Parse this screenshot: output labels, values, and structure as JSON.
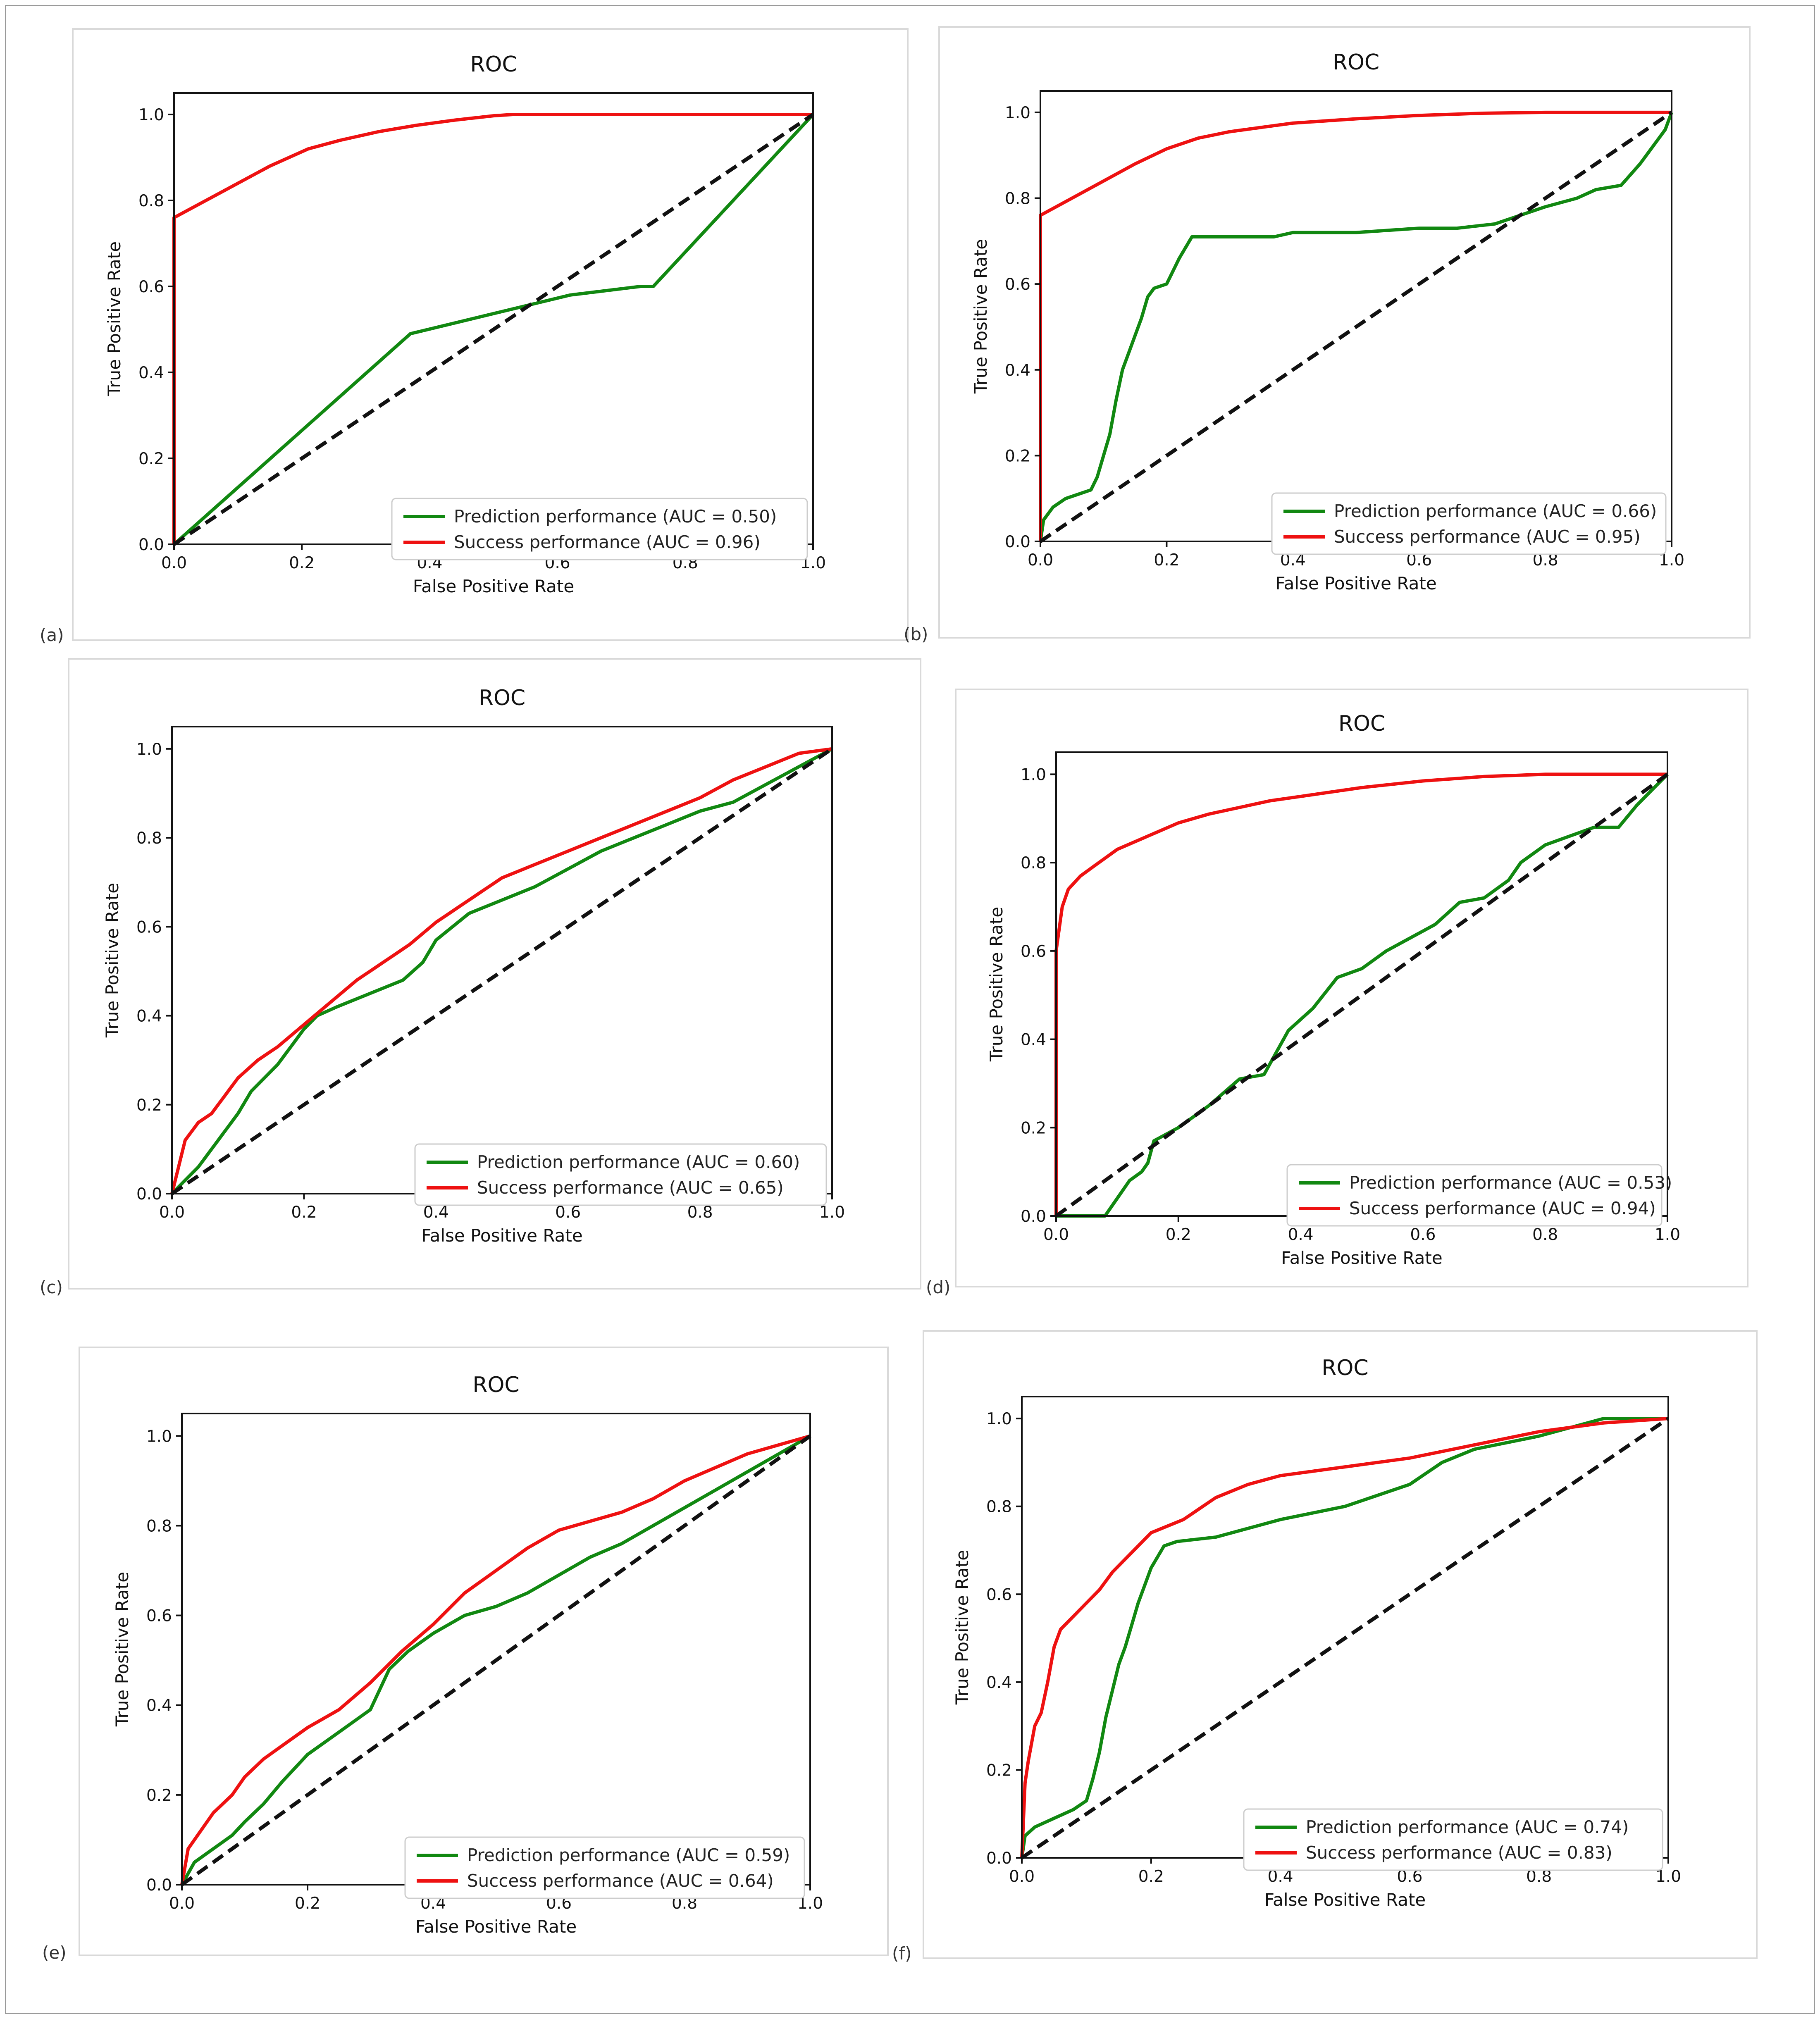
{
  "colors": {
    "prediction": "#118811",
    "success": "#ee1111",
    "reference": "#111111"
  },
  "panel_labels": [
    "(a)",
    "(b)",
    "(c)",
    "(d)",
    "(e)",
    "(f)"
  ],
  "chart_data": [
    {
      "id": "a",
      "type": "line",
      "title": "ROC",
      "xlabel": "False Positive Rate",
      "ylabel": "True Positive Rate",
      "xlim": [
        0,
        1
      ],
      "ylim": [
        0,
        1.05
      ],
      "xticks": [
        "0.0",
        "0.2",
        "0.4",
        "0.6",
        "0.8",
        "1.0"
      ],
      "yticks": [
        "0.0",
        "0.2",
        "0.4",
        "0.6",
        "0.8",
        "1.0"
      ],
      "legend": "lower-right",
      "series": [
        {
          "name": "Prediction performance (AUC = 0.50)",
          "color": "prediction",
          "x": [
            0,
            0.37,
            0.62,
            0.73,
            0.75,
            1.0
          ],
          "y": [
            0,
            0.49,
            0.58,
            0.6,
            0.6,
            1.0
          ]
        },
        {
          "name": "Success performance (AUC = 0.96)",
          "color": "success",
          "x": [
            0,
            0,
            0.05,
            0.1,
            0.15,
            0.21,
            0.26,
            0.32,
            0.38,
            0.44,
            0.5,
            0.53,
            0.6,
            0.7,
            0.8,
            0.9,
            1.0
          ],
          "y": [
            0,
            0.76,
            0.8,
            0.84,
            0.88,
            0.92,
            0.94,
            0.96,
            0.975,
            0.987,
            0.997,
            1.0,
            1.0,
            1.0,
            1.0,
            1.0,
            1.0
          ]
        },
        {
          "name": "reference",
          "color": "reference",
          "dashed": true,
          "legend": false,
          "x": [
            0,
            1
          ],
          "y": [
            0,
            1
          ]
        }
      ]
    },
    {
      "id": "b",
      "type": "line",
      "title": "ROC",
      "xlabel": "False Positive Rate",
      "ylabel": "True Positive Rate",
      "xlim": [
        0,
        1
      ],
      "ylim": [
        0,
        1.05
      ],
      "xticks": [
        "0.0",
        "0.2",
        "0.4",
        "0.6",
        "0.8",
        "1.0"
      ],
      "yticks": [
        "0.0",
        "0.2",
        "0.4",
        "0.6",
        "0.8",
        "1.0"
      ],
      "legend": "lower-right",
      "series": [
        {
          "name": "Prediction performance (AUC = 0.66)",
          "color": "prediction",
          "x": [
            0,
            0.005,
            0.02,
            0.04,
            0.06,
            0.08,
            0.09,
            0.1,
            0.11,
            0.12,
            0.13,
            0.14,
            0.15,
            0.16,
            0.17,
            0.18,
            0.2,
            0.22,
            0.24,
            0.3,
            0.37,
            0.4,
            0.5,
            0.6,
            0.66,
            0.72,
            0.76,
            0.8,
            0.85,
            0.88,
            0.92,
            0.95,
            0.97,
            0.99,
            1.0
          ],
          "y": [
            0,
            0.05,
            0.08,
            0.1,
            0.11,
            0.12,
            0.15,
            0.2,
            0.25,
            0.33,
            0.4,
            0.44,
            0.48,
            0.52,
            0.57,
            0.59,
            0.6,
            0.66,
            0.71,
            0.71,
            0.71,
            0.72,
            0.72,
            0.73,
            0.73,
            0.74,
            0.76,
            0.78,
            0.8,
            0.82,
            0.83,
            0.88,
            0.92,
            0.96,
            1.0
          ]
        },
        {
          "name": "Success performance (AUC = 0.95)",
          "color": "success",
          "x": [
            0,
            0,
            0.05,
            0.1,
            0.15,
            0.2,
            0.25,
            0.3,
            0.35,
            0.4,
            0.5,
            0.6,
            0.7,
            0.8,
            0.9,
            1.0
          ],
          "y": [
            0,
            0.76,
            0.8,
            0.84,
            0.88,
            0.915,
            0.94,
            0.955,
            0.965,
            0.975,
            0.985,
            0.993,
            0.998,
            1.0,
            1.0,
            1.0
          ]
        },
        {
          "name": "reference",
          "color": "reference",
          "dashed": true,
          "legend": false,
          "x": [
            0,
            1
          ],
          "y": [
            0,
            1
          ]
        }
      ]
    },
    {
      "id": "c",
      "type": "line",
      "title": "ROC",
      "xlabel": "False Positive Rate",
      "ylabel": "True Positive Rate",
      "xlim": [
        0,
        1
      ],
      "ylim": [
        0,
        1.05
      ],
      "xticks": [
        "0.0",
        "0.2",
        "0.4",
        "0.6",
        "0.8",
        "1.0"
      ],
      "yticks": [
        "0.0",
        "0.2",
        "0.4",
        "0.6",
        "0.8",
        "1.0"
      ],
      "legend": "lower-right",
      "series": [
        {
          "name": "Prediction performance (AUC = 0.60)",
          "color": "prediction",
          "x": [
            0,
            0.02,
            0.04,
            0.06,
            0.08,
            0.1,
            0.12,
            0.14,
            0.16,
            0.18,
            0.2,
            0.22,
            0.25,
            0.3,
            0.35,
            0.38,
            0.4,
            0.45,
            0.5,
            0.55,
            0.6,
            0.65,
            0.7,
            0.75,
            0.8,
            0.85,
            0.9,
            0.95,
            1.0
          ],
          "y": [
            0,
            0.03,
            0.06,
            0.1,
            0.14,
            0.18,
            0.23,
            0.26,
            0.29,
            0.33,
            0.37,
            0.4,
            0.42,
            0.45,
            0.48,
            0.52,
            0.57,
            0.63,
            0.66,
            0.69,
            0.73,
            0.77,
            0.8,
            0.83,
            0.86,
            0.88,
            0.92,
            0.96,
            1.0
          ]
        },
        {
          "name": "Success performance (AUC = 0.65)",
          "color": "success",
          "x": [
            0,
            0.01,
            0.02,
            0.04,
            0.06,
            0.08,
            0.1,
            0.13,
            0.16,
            0.2,
            0.24,
            0.28,
            0.32,
            0.36,
            0.4,
            0.45,
            0.5,
            0.55,
            0.6,
            0.65,
            0.7,
            0.75,
            0.8,
            0.85,
            0.9,
            0.95,
            1.0
          ],
          "y": [
            0,
            0.06,
            0.12,
            0.16,
            0.18,
            0.22,
            0.26,
            0.3,
            0.33,
            0.38,
            0.43,
            0.48,
            0.52,
            0.56,
            0.61,
            0.66,
            0.71,
            0.74,
            0.77,
            0.8,
            0.83,
            0.86,
            0.89,
            0.93,
            0.96,
            0.99,
            1.0
          ]
        },
        {
          "name": "reference",
          "color": "reference",
          "dashed": true,
          "legend": false,
          "x": [
            0,
            1
          ],
          "y": [
            0,
            1
          ]
        }
      ]
    },
    {
      "id": "d",
      "type": "line",
      "title": "ROC",
      "xlabel": "False Positive Rate",
      "ylabel": "True Positive Rate",
      "xlim": [
        0,
        1
      ],
      "ylim": [
        0,
        1.05
      ],
      "xticks": [
        "0.0",
        "0.2",
        "0.4",
        "0.6",
        "0.8",
        "1.0"
      ],
      "yticks": [
        "0.0",
        "0.2",
        "0.4",
        "0.6",
        "0.8",
        "1.0"
      ],
      "legend": "lower-right",
      "series": [
        {
          "name": "Prediction performance (AUC = 0.53)",
          "color": "prediction",
          "x": [
            0,
            0.08,
            0.1,
            0.12,
            0.14,
            0.15,
            0.16,
            0.2,
            0.25,
            0.3,
            0.34,
            0.36,
            0.38,
            0.42,
            0.46,
            0.5,
            0.54,
            0.58,
            0.62,
            0.66,
            0.7,
            0.74,
            0.76,
            0.8,
            0.84,
            0.88,
            0.92,
            0.95,
            1.0
          ],
          "y": [
            0,
            0,
            0.04,
            0.08,
            0.1,
            0.12,
            0.17,
            0.2,
            0.25,
            0.31,
            0.32,
            0.37,
            0.42,
            0.47,
            0.54,
            0.56,
            0.6,
            0.63,
            0.66,
            0.71,
            0.72,
            0.76,
            0.8,
            0.84,
            0.86,
            0.88,
            0.88,
            0.93,
            1.0
          ]
        },
        {
          "name": "Success performance (AUC = 0.94)",
          "color": "success",
          "x": [
            0,
            0,
            0.005,
            0.01,
            0.02,
            0.04,
            0.06,
            0.08,
            0.1,
            0.15,
            0.2,
            0.25,
            0.3,
            0.35,
            0.4,
            0.5,
            0.6,
            0.7,
            0.8,
            0.9,
            1.0
          ],
          "y": [
            0,
            0.6,
            0.65,
            0.7,
            0.74,
            0.77,
            0.79,
            0.81,
            0.83,
            0.86,
            0.89,
            0.91,
            0.925,
            0.94,
            0.95,
            0.97,
            0.985,
            0.995,
            1.0,
            1.0,
            1.0
          ]
        },
        {
          "name": "reference",
          "color": "reference",
          "dashed": true,
          "legend": false,
          "x": [
            0,
            1
          ],
          "y": [
            0,
            1
          ]
        }
      ]
    },
    {
      "id": "e",
      "type": "line",
      "title": "ROC",
      "xlabel": "False Positive Rate",
      "ylabel": "True Positive Rate",
      "xlim": [
        0,
        1
      ],
      "ylim": [
        0,
        1.05
      ],
      "xticks": [
        "0.0",
        "0.2",
        "0.4",
        "0.6",
        "0.8",
        "1.0"
      ],
      "yticks": [
        "0.0",
        "0.2",
        "0.4",
        "0.6",
        "0.8",
        "1.0"
      ],
      "legend": "lower-right",
      "series": [
        {
          "name": "Prediction performance (AUC = 0.59)",
          "color": "prediction",
          "x": [
            0,
            0.02,
            0.05,
            0.08,
            0.1,
            0.13,
            0.16,
            0.2,
            0.25,
            0.3,
            0.33,
            0.36,
            0.4,
            0.45,
            0.5,
            0.55,
            0.6,
            0.65,
            0.7,
            0.75,
            0.8,
            0.85,
            0.9,
            0.95,
            1.0
          ],
          "y": [
            0,
            0.05,
            0.08,
            0.11,
            0.14,
            0.18,
            0.23,
            0.29,
            0.34,
            0.39,
            0.48,
            0.52,
            0.56,
            0.6,
            0.62,
            0.65,
            0.69,
            0.73,
            0.76,
            0.8,
            0.84,
            0.88,
            0.92,
            0.96,
            1.0
          ]
        },
        {
          "name": "Success performance (AUC = 0.64)",
          "color": "success",
          "x": [
            0,
            0.01,
            0.03,
            0.05,
            0.08,
            0.1,
            0.13,
            0.16,
            0.2,
            0.25,
            0.3,
            0.35,
            0.4,
            0.45,
            0.5,
            0.55,
            0.6,
            0.65,
            0.7,
            0.75,
            0.8,
            0.85,
            0.9,
            0.95,
            1.0
          ],
          "y": [
            0,
            0.08,
            0.12,
            0.16,
            0.2,
            0.24,
            0.28,
            0.31,
            0.35,
            0.39,
            0.45,
            0.52,
            0.58,
            0.65,
            0.7,
            0.75,
            0.79,
            0.81,
            0.83,
            0.86,
            0.9,
            0.93,
            0.96,
            0.98,
            1.0
          ]
        },
        {
          "name": "reference",
          "color": "reference",
          "dashed": true,
          "legend": false,
          "x": [
            0,
            1
          ],
          "y": [
            0,
            1
          ]
        }
      ]
    },
    {
      "id": "f",
      "type": "line",
      "title": "ROC",
      "xlabel": "False Positive Rate",
      "ylabel": "True Positive Rate",
      "xlim": [
        0,
        1
      ],
      "ylim": [
        0,
        1.05
      ],
      "xticks": [
        "0.0",
        "0.2",
        "0.4",
        "0.6",
        "0.8",
        "1.0"
      ],
      "yticks": [
        "0.0",
        "0.2",
        "0.4",
        "0.6",
        "0.8",
        "1.0"
      ],
      "legend": "lower-right",
      "series": [
        {
          "name": "Prediction performance (AUC = 0.74)",
          "color": "prediction",
          "x": [
            0,
            0.005,
            0.02,
            0.05,
            0.08,
            0.1,
            0.11,
            0.12,
            0.13,
            0.14,
            0.15,
            0.16,
            0.17,
            0.18,
            0.19,
            0.2,
            0.22,
            0.24,
            0.3,
            0.35,
            0.4,
            0.5,
            0.6,
            0.65,
            0.7,
            0.8,
            0.9,
            1.0
          ],
          "y": [
            0,
            0.05,
            0.07,
            0.09,
            0.11,
            0.13,
            0.18,
            0.24,
            0.32,
            0.38,
            0.44,
            0.48,
            0.53,
            0.58,
            0.62,
            0.66,
            0.71,
            0.72,
            0.73,
            0.75,
            0.77,
            0.8,
            0.85,
            0.9,
            0.93,
            0.96,
            1.0,
            1.0
          ]
        },
        {
          "name": "Success performance (AUC = 0.83)",
          "color": "success",
          "x": [
            0,
            0.005,
            0.01,
            0.02,
            0.03,
            0.04,
            0.05,
            0.06,
            0.08,
            0.1,
            0.12,
            0.14,
            0.16,
            0.2,
            0.25,
            0.3,
            0.35,
            0.4,
            0.5,
            0.6,
            0.7,
            0.8,
            0.9,
            1.0
          ],
          "y": [
            0,
            0.17,
            0.22,
            0.3,
            0.33,
            0.4,
            0.48,
            0.52,
            0.55,
            0.58,
            0.61,
            0.65,
            0.68,
            0.74,
            0.77,
            0.82,
            0.85,
            0.87,
            0.89,
            0.91,
            0.94,
            0.97,
            0.99,
            1.0
          ]
        },
        {
          "name": "reference",
          "color": "reference",
          "dashed": true,
          "legend": false,
          "x": [
            0,
            1
          ],
          "y": [
            0,
            1
          ]
        }
      ]
    }
  ]
}
